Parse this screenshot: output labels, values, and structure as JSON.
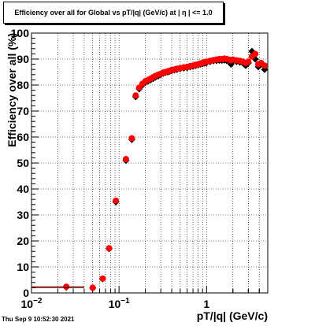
{
  "timestamp": "Thu Sep  9 10:52:30 2021",
  "chart_data": {
    "type": "scatter",
    "title": "Efficiency over all for Global vs pT/|q| (GeV/c) at |  η  | <= 1.0",
    "xlabel": "pT/|q| (GeV/c)",
    "ylabel": "Efficiency over all (%)",
    "xscale": "log",
    "xlim": [
      0.01,
      5
    ],
    "ylim": [
      0,
      100
    ],
    "grid": true,
    "x_tick_labels": [
      {
        "value": 0.01,
        "base": "10",
        "exp": "−2"
      },
      {
        "value": 0.1,
        "base": "10",
        "exp": "−1"
      },
      {
        "value": 1,
        "base": "1",
        "exp": ""
      }
    ],
    "y_ticks": [
      0,
      10,
      20,
      30,
      40,
      50,
      60,
      70,
      80,
      90,
      100
    ],
    "series": [
      {
        "marker": "diamond",
        "color": "#000000",
        "x": [
          0.025,
          0.05,
          0.065,
          0.077,
          0.092,
          0.12,
          0.14,
          0.155,
          0.17,
          0.185,
          0.2,
          0.215,
          0.23,
          0.245,
          0.26,
          0.28,
          0.3,
          0.32,
          0.34,
          0.36,
          0.38,
          0.4,
          0.43,
          0.46,
          0.5,
          0.55,
          0.6,
          0.65,
          0.7,
          0.75,
          0.8,
          0.85,
          0.9,
          0.95,
          1.0,
          1.1,
          1.2,
          1.3,
          1.4,
          1.5,
          1.6,
          1.7,
          1.8,
          1.9,
          2.0,
          2.2,
          2.4,
          2.6,
          2.8,
          3.0,
          3.3,
          3.6,
          3.9,
          4.2,
          4.6
        ],
        "y": [
          2.2,
          1.9,
          5.4,
          17.0,
          35.0,
          51.0,
          59.0,
          75.5,
          78.5,
          80.0,
          81.0,
          81.5,
          82.0,
          82.5,
          83.0,
          83.5,
          84.0,
          84.5,
          84.8,
          85.0,
          85.3,
          85.5,
          85.8,
          86.0,
          86.3,
          86.5,
          86.7,
          87.0,
          87.2,
          87.5,
          87.8,
          88.0,
          88.2,
          88.4,
          88.6,
          89.0,
          89.3,
          89.4,
          89.5,
          89.5,
          89.6,
          89.4,
          89.3,
          88.0,
          89.2,
          89.0,
          88.8,
          88.5,
          87.5,
          88.5,
          93.0,
          90.0,
          87.0,
          88.0,
          86.0
        ]
      },
      {
        "marker": "circle",
        "color": "#ff0000",
        "x": [
          0.025,
          0.05,
          0.065,
          0.077,
          0.092,
          0.12,
          0.14,
          0.155,
          0.17,
          0.185,
          0.2,
          0.215,
          0.23,
          0.245,
          0.26,
          0.28,
          0.3,
          0.32,
          0.34,
          0.36,
          0.38,
          0.4,
          0.43,
          0.46,
          0.5,
          0.55,
          0.6,
          0.65,
          0.7,
          0.75,
          0.8,
          0.85,
          0.9,
          0.95,
          1.0,
          1.1,
          1.2,
          1.3,
          1.4,
          1.5,
          1.6,
          1.7,
          1.8,
          1.9,
          2.0,
          2.2,
          2.4,
          2.6,
          2.8,
          3.0,
          3.3,
          3.6,
          3.9,
          4.2,
          4.6
        ],
        "y": [
          2.4,
          2.0,
          5.5,
          17.2,
          35.5,
          51.5,
          59.5,
          76.0,
          79.0,
          80.5,
          81.5,
          82.0,
          82.5,
          83.0,
          83.5,
          84.0,
          84.3,
          84.8,
          85.0,
          85.3,
          85.5,
          85.8,
          86.0,
          86.3,
          86.5,
          86.8,
          87.0,
          87.3,
          87.5,
          87.8,
          88.0,
          88.3,
          88.5,
          88.8,
          89.0,
          89.3,
          89.6,
          89.8,
          90.0,
          90.0,
          90.2,
          90.0,
          89.8,
          89.5,
          89.8,
          89.5,
          89.3,
          89.0,
          88.5,
          89.0,
          91.0,
          92.0,
          88.0,
          88.5,
          87.5
        ]
      }
    ]
  }
}
